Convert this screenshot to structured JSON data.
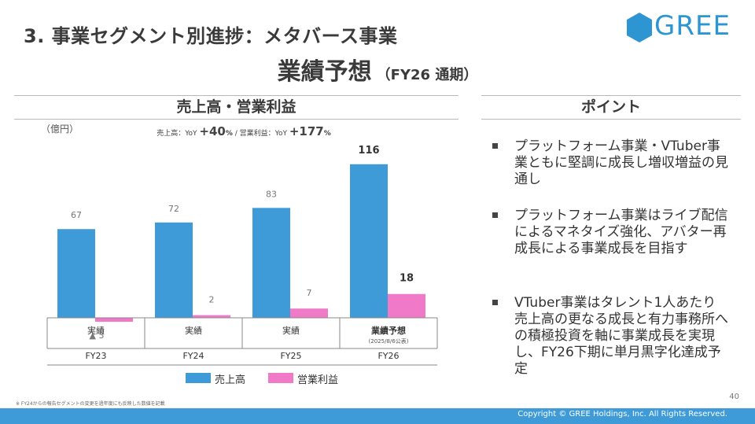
{
  "header": {
    "section_title": "3. 事業セグメント別進捗：メタバース事業",
    "main_title": "業績予想",
    "main_subtitle": "（FY26 通期）",
    "logo_text": "GREE"
  },
  "sales_panel": {
    "heading": "売上高・営業利益",
    "unit": "（億円）",
    "yoy": {
      "sales_label": "売上高：YoY",
      "sales_value": "+40",
      "sales_unit": "%",
      "separator": "/",
      "op_label": "営業利益：YoY",
      "op_value": "+177",
      "op_unit": "%"
    }
  },
  "chart_data": {
    "type": "bar",
    "categories": [
      "FY23",
      "FY24",
      "FY25",
      "FY26"
    ],
    "row_labels": [
      "実績",
      "実績",
      "実績",
      "業績予想"
    ],
    "row_sublabels": [
      "",
      "",
      "",
      "(2025/8/6公表)"
    ],
    "series": [
      {
        "name": "売上高",
        "values": [
          67,
          72,
          83,
          116
        ],
        "labels": [
          "67",
          "72",
          "83",
          "116"
        ],
        "color": "#3f9ad8"
      },
      {
        "name": "営業利益",
        "values": [
          -3,
          2,
          7,
          18
        ],
        "labels": [
          "▲ 3",
          "2",
          "7",
          "18"
        ],
        "color": "#f07ac8"
      }
    ],
    "legend": [
      "売上高",
      "営業利益"
    ],
    "legend_position": "bottom"
  },
  "points_panel": {
    "heading": "ポイント",
    "items": [
      "プラットフォーム事業・VTuber事業ともに堅調に成長し増収増益の見通し",
      "プラットフォーム事業はライブ配信によるマネタイズ強化、アバター再成長による事業成長を目指す",
      "VTuber事業はタレント1人あたり売上高の更なる成長と有力事務所への積極投資を軸に事業成長を実現し、FY26下期に単月黒字化達成予定"
    ]
  },
  "footer": {
    "footnote": "※ FY24からの報告セグメントの変更を過年度にも反映した数値を記載",
    "page_number": "40",
    "copyright": "Copyright © GREE Holdings, Inc. All Rights Reserved."
  },
  "colors": {
    "accent": "#3f9ad8",
    "operating_profit": "#f07ac8",
    "brand": "#2e95d3"
  }
}
